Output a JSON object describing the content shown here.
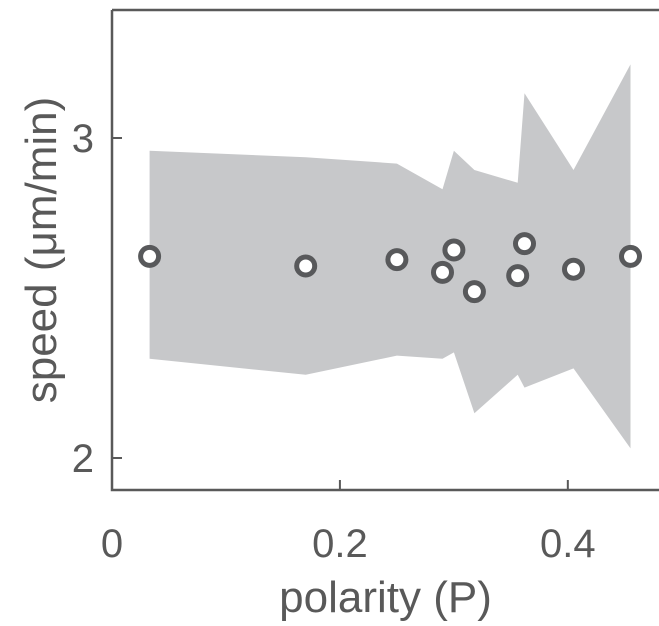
{
  "chart_data": {
    "type": "scatter",
    "xlabel": "polarity (P)",
    "ylabel": "speed (μm/min)",
    "xlim": [
      0,
      0.48
    ],
    "ylim": [
      1.9,
      3.4
    ],
    "x_ticks": [
      0,
      0.2,
      0.4
    ],
    "x_tick_labels": [
      "0",
      "0.2",
      "0.4"
    ],
    "y_ticks": [
      2,
      3
    ],
    "y_tick_labels": [
      "2",
      "3"
    ],
    "grid": false,
    "points": [
      {
        "x": 0.033,
        "y": 2.63
      },
      {
        "x": 0.17,
        "y": 2.6
      },
      {
        "x": 0.25,
        "y": 2.62
      },
      {
        "x": 0.29,
        "y": 2.58
      },
      {
        "x": 0.3,
        "y": 2.65
      },
      {
        "x": 0.318,
        "y": 2.52
      },
      {
        "x": 0.356,
        "y": 2.57
      },
      {
        "x": 0.362,
        "y": 2.67
      },
      {
        "x": 0.405,
        "y": 2.59
      },
      {
        "x": 0.455,
        "y": 2.63
      }
    ],
    "band": {
      "upper": [
        {
          "x": 0.033,
          "y": 2.96
        },
        {
          "x": 0.17,
          "y": 2.94
        },
        {
          "x": 0.25,
          "y": 2.92
        },
        {
          "x": 0.29,
          "y": 2.84
        },
        {
          "x": 0.3,
          "y": 2.96
        },
        {
          "x": 0.318,
          "y": 2.9
        },
        {
          "x": 0.356,
          "y": 2.86
        },
        {
          "x": 0.362,
          "y": 3.14
        },
        {
          "x": 0.405,
          "y": 2.9
        },
        {
          "x": 0.455,
          "y": 3.23
        }
      ],
      "lower": [
        {
          "x": 0.033,
          "y": 2.31
        },
        {
          "x": 0.17,
          "y": 2.26
        },
        {
          "x": 0.25,
          "y": 2.32
        },
        {
          "x": 0.29,
          "y": 2.31
        },
        {
          "x": 0.3,
          "y": 2.33
        },
        {
          "x": 0.318,
          "y": 2.14
        },
        {
          "x": 0.356,
          "y": 2.26
        },
        {
          "x": 0.362,
          "y": 2.22
        },
        {
          "x": 0.405,
          "y": 2.28
        },
        {
          "x": 0.455,
          "y": 2.03
        }
      ]
    },
    "colors": {
      "band": "#c7c8ca",
      "marker_edge": "#58595b",
      "marker_fill": "#ffffff",
      "axis": "#595959"
    }
  }
}
